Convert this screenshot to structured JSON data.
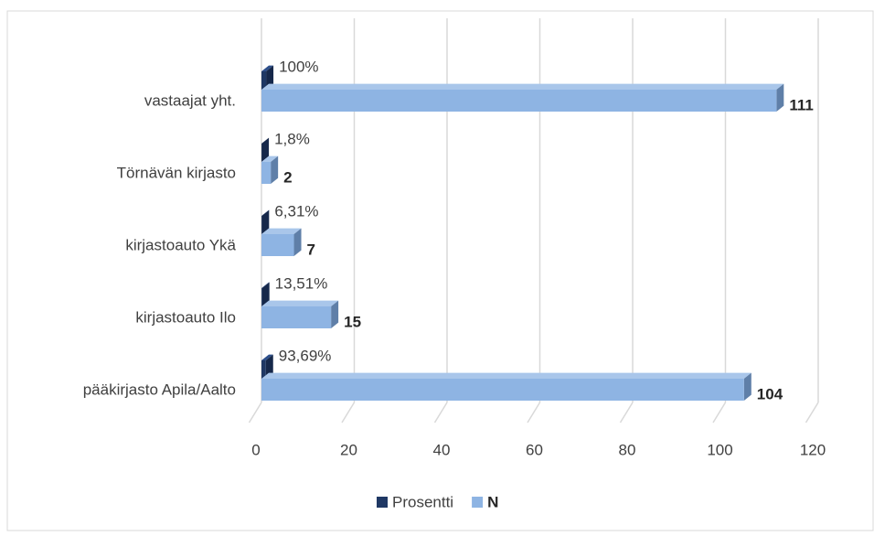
{
  "chart_data": {
    "type": "bar3d_horizontal",
    "categories": [
      "vastaajat yht.",
      "Törnävän kirjasto",
      "kirjastoauto Ykä",
      "kirjastoauto Ilo",
      "pääkirjasto Apila/Aalto"
    ],
    "series": [
      {
        "name": "Prosentti",
        "color": "#1f3864",
        "values": [
          1,
          0.018,
          0.0631,
          0.1351,
          0.9369
        ],
        "value_labels": [
          "100%",
          "1,8%",
          "6,31%",
          "13,51%",
          "93,69%"
        ]
      },
      {
        "name": "N",
        "color": "#8eb4e3",
        "values": [
          111,
          2,
          7,
          15,
          104
        ]
      }
    ],
    "xlim": [
      0,
      120
    ],
    "xticks": [
      0,
      20,
      40,
      60,
      80,
      100,
      120
    ],
    "grid": true,
    "legend": "bottom"
  }
}
